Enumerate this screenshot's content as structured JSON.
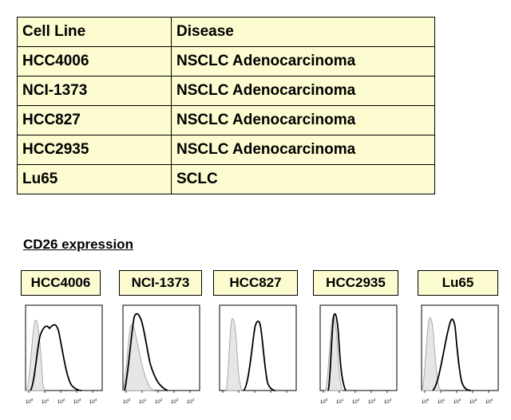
{
  "table": {
    "header": [
      "Cell Line",
      "Disease"
    ],
    "rows": [
      [
        "HCC4006",
        "NSCLC  Adenocarcinoma"
      ],
      [
        "NCI-1373",
        "NSCLC  Adenocarcinoma"
      ],
      [
        "HCC827",
        "NSCLC  Adenocarcinoma"
      ],
      [
        "HCC2935",
        "NSCLC  Adenocarcinoma"
      ],
      [
        "Lu65",
        "SCLC"
      ]
    ]
  },
  "section_title": "CD26 expression",
  "panels": [
    {
      "label": "HCC4006"
    },
    {
      "label": "NCI-1373"
    },
    {
      "label": "HCC827"
    },
    {
      "label": "HCC2935"
    },
    {
      "label": "Lu65"
    }
  ],
  "axis": {
    "x_ticks": [
      "10",
      "10",
      "10",
      "10",
      "10"
    ],
    "x_exponents": [
      "0",
      "1",
      "2",
      "3",
      "4"
    ]
  },
  "colors": {
    "box_fill": "#fdfbd0",
    "control_fill": "#e6e6e6",
    "control_line": "#9a9a9a",
    "stain_line": "#000000"
  }
}
